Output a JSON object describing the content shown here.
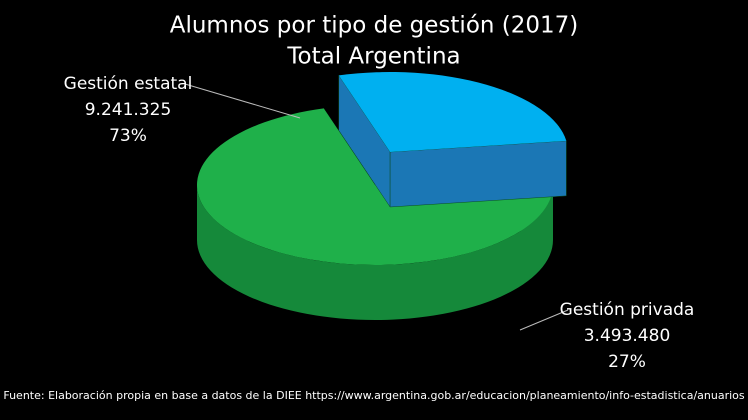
{
  "chart_data": {
    "type": "pie",
    "title": "Alumnos por tipo de gestión (2017)",
    "subtitle": "Total Argentina",
    "categories": [
      "Gestión estatal",
      "Gestión privada"
    ],
    "values": [
      9241325,
      3493480
    ],
    "value_labels": [
      "9.241.325",
      "3.493.480"
    ],
    "percents": [
      73,
      27
    ],
    "percent_labels": [
      "73%",
      "27%"
    ],
    "colors": [
      "#1fb04a",
      "#00b0f0"
    ],
    "side_colors": [
      "#15893a",
      "#1b77b5"
    ],
    "source": "Fuente: Elaboración propia en base a datos de la DIEE https://www.argentina.gob.ar/educacion/planeamiento/info-estadistica/anuarios"
  }
}
